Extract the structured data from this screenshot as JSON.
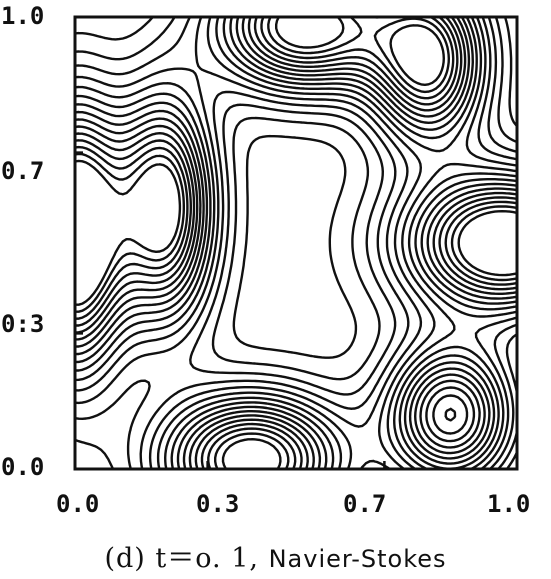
{
  "chart_data": {
    "type": "contour",
    "title": "",
    "xlabel": "",
    "ylabel": "",
    "xlim": [
      0.0,
      1.0
    ],
    "ylim": [
      0.0,
      1.0
    ],
    "x_ticks": [
      "0.0",
      "0.3",
      "0.7",
      "1.0"
    ],
    "y_ticks": [
      "0.0",
      "0:3",
      "0.7",
      "1.0"
    ],
    "x_tick_values": [
      0.0,
      0.3,
      0.7,
      1.0
    ],
    "y_tick_values": [
      0.0,
      0.3,
      0.7,
      1.0
    ],
    "grid": false,
    "line_color": "#111111",
    "contour_levels": 16,
    "extrema": [
      {
        "x": 0.2,
        "y": 0.58
      },
      {
        "x": 0.52,
        "y": 0.98
      },
      {
        "x": 0.4,
        "y": 0.02
      },
      {
        "x": 0.8,
        "y": 0.9
      },
      {
        "x": 0.85,
        "y": 0.12
      },
      {
        "x": 0.97,
        "y": 0.5
      },
      {
        "x": 0.0,
        "y": 0.52
      }
    ]
  },
  "caption": {
    "prefix": "(d) t＝o. 1,",
    "subject": "Navier-Stokes"
  }
}
